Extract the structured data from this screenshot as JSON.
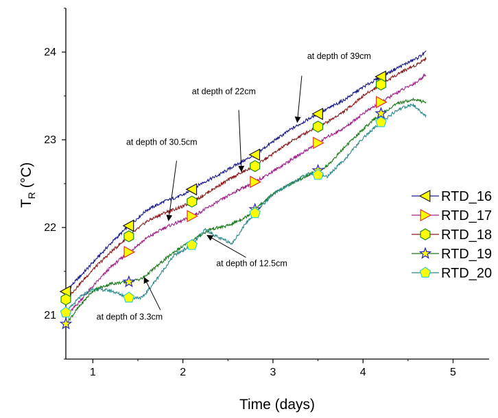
{
  "chart_data": {
    "type": "line",
    "title": "",
    "xlabel": "Time (days)",
    "ylabel_main": "T",
    "ylabel_sub": "R",
    "ylabel_unit": "(°C)",
    "xlim": [
      0.7,
      5.4
    ],
    "ylim": [
      20.5,
      24.5
    ],
    "x_ticks": [
      1,
      2,
      3,
      4,
      5
    ],
    "y_ticks": [
      21,
      22,
      23,
      24
    ],
    "grid": false,
    "legend_position": "right",
    "series": [
      {
        "name": "RTD_16",
        "color": "#1a1a8c",
        "marker": "triangle-left",
        "marker_x": [
          0.7,
          1.4,
          2.1,
          2.8,
          3.5,
          4.2
        ],
        "points": [
          [
            0.7,
            21.27
          ],
          [
            1.0,
            21.6
          ],
          [
            1.2,
            21.82
          ],
          [
            1.4,
            22.02
          ],
          [
            1.6,
            22.2
          ],
          [
            1.8,
            22.3
          ],
          [
            2.0,
            22.37
          ],
          [
            2.2,
            22.5
          ],
          [
            2.4,
            22.6
          ],
          [
            2.6,
            22.72
          ],
          [
            2.8,
            22.83
          ],
          [
            3.0,
            22.98
          ],
          [
            3.2,
            23.12
          ],
          [
            3.4,
            23.24
          ],
          [
            3.6,
            23.35
          ],
          [
            3.8,
            23.46
          ],
          [
            4.0,
            23.6
          ],
          [
            4.2,
            23.72
          ],
          [
            4.4,
            23.83
          ],
          [
            4.6,
            23.93
          ],
          [
            4.7,
            24.0
          ]
        ]
      },
      {
        "name": "RTD_17",
        "color": "#a0208a",
        "marker": "triangle-right",
        "marker_x": [
          1.4,
          2.1,
          2.8,
          3.5,
          4.2
        ],
        "points": [
          [
            0.7,
            20.98
          ],
          [
            1.0,
            21.33
          ],
          [
            1.2,
            21.55
          ],
          [
            1.4,
            21.72
          ],
          [
            1.6,
            21.88
          ],
          [
            1.8,
            22.0
          ],
          [
            2.0,
            22.08
          ],
          [
            2.2,
            22.18
          ],
          [
            2.4,
            22.3
          ],
          [
            2.6,
            22.42
          ],
          [
            2.8,
            22.52
          ],
          [
            3.0,
            22.64
          ],
          [
            3.2,
            22.77
          ],
          [
            3.4,
            22.9
          ],
          [
            3.6,
            23.03
          ],
          [
            3.8,
            23.14
          ],
          [
            4.0,
            23.3
          ],
          [
            4.2,
            23.43
          ],
          [
            4.4,
            23.55
          ],
          [
            4.6,
            23.66
          ],
          [
            4.7,
            23.75
          ]
        ]
      },
      {
        "name": "RTD_18",
        "color": "#8b1a1a",
        "marker": "hexagon",
        "marker_x": [
          0.7,
          1.4,
          2.1,
          2.8,
          3.5,
          4.2
        ],
        "points": [
          [
            0.7,
            21.18
          ],
          [
            1.0,
            21.52
          ],
          [
            1.2,
            21.72
          ],
          [
            1.4,
            21.9
          ],
          [
            1.6,
            22.07
          ],
          [
            1.8,
            22.17
          ],
          [
            2.0,
            22.24
          ],
          [
            2.2,
            22.35
          ],
          [
            2.4,
            22.48
          ],
          [
            2.6,
            22.6
          ],
          [
            2.8,
            22.7
          ],
          [
            3.0,
            22.84
          ],
          [
            3.2,
            22.98
          ],
          [
            3.4,
            23.1
          ],
          [
            3.6,
            23.2
          ],
          [
            3.8,
            23.33
          ],
          [
            4.0,
            23.5
          ],
          [
            4.2,
            23.63
          ],
          [
            4.4,
            23.76
          ],
          [
            4.6,
            23.86
          ],
          [
            4.7,
            23.93
          ]
        ]
      },
      {
        "name": "RTD_19",
        "color": "#1b7a1b",
        "marker": "star",
        "marker_x": [
          0.7,
          1.4,
          2.8,
          3.5,
          4.2
        ],
        "points": [
          [
            0.7,
            20.9
          ],
          [
            0.85,
            21.1
          ],
          [
            1.0,
            21.28
          ],
          [
            1.2,
            21.36
          ],
          [
            1.4,
            21.38
          ],
          [
            1.55,
            21.42
          ],
          [
            1.7,
            21.55
          ],
          [
            1.9,
            21.72
          ],
          [
            2.1,
            21.85
          ],
          [
            2.3,
            21.98
          ],
          [
            2.5,
            22.02
          ],
          [
            2.7,
            22.12
          ],
          [
            2.85,
            22.25
          ],
          [
            3.0,
            22.38
          ],
          [
            3.2,
            22.5
          ],
          [
            3.4,
            22.6
          ],
          [
            3.6,
            22.7
          ],
          [
            3.8,
            22.92
          ],
          [
            4.0,
            23.12
          ],
          [
            4.2,
            23.3
          ],
          [
            4.4,
            23.42
          ],
          [
            4.55,
            23.46
          ],
          [
            4.7,
            23.43
          ]
        ]
      },
      {
        "name": "RTD_20",
        "color": "#2a8a8a",
        "marker": "pentagon",
        "marker_x": [
          0.7,
          1.4,
          2.1,
          2.8,
          3.5,
          4.2
        ],
        "points": [
          [
            0.7,
            21.03
          ],
          [
            0.85,
            21.2
          ],
          [
            1.0,
            21.3
          ],
          [
            1.2,
            21.28
          ],
          [
            1.4,
            21.2
          ],
          [
            1.55,
            21.2
          ],
          [
            1.7,
            21.4
          ],
          [
            1.9,
            21.68
          ],
          [
            2.1,
            21.8
          ],
          [
            2.25,
            21.98
          ],
          [
            2.4,
            21.88
          ],
          [
            2.55,
            21.82
          ],
          [
            2.7,
            22.05
          ],
          [
            2.85,
            22.22
          ],
          [
            3.0,
            22.38
          ],
          [
            3.2,
            22.5
          ],
          [
            3.4,
            22.62
          ],
          [
            3.6,
            22.58
          ],
          [
            3.8,
            22.78
          ],
          [
            4.0,
            23.02
          ],
          [
            4.2,
            23.2
          ],
          [
            4.4,
            23.35
          ],
          [
            4.55,
            23.4
          ],
          [
            4.7,
            23.27
          ]
        ]
      }
    ],
    "annotations": [
      {
        "text": "at depth of 39cm",
        "text_x": 3.38,
        "text_y": 23.92,
        "arrow_from": [
          3.32,
          23.73
        ],
        "arrow_to": [
          3.27,
          23.2
        ]
      },
      {
        "text": "at depth of 22cm",
        "text_x": 2.1,
        "text_y": 23.52,
        "arrow_from": [
          2.62,
          23.34
        ],
        "arrow_to": [
          2.65,
          22.64
        ]
      },
      {
        "text": "at depth of 30.5cm",
        "text_x": 1.37,
        "text_y": 22.94,
        "arrow_from": [
          1.93,
          22.76
        ],
        "arrow_to": [
          1.84,
          22.08
        ]
      },
      {
        "text": "at depth of 12.5cm",
        "text_x": 2.37,
        "text_y": 21.56,
        "arrow_from": [
          2.7,
          21.66
        ],
        "arrow_to": [
          2.27,
          21.91
        ]
      },
      {
        "text": "at depth of 3.3cm",
        "text_x": 1.04,
        "text_y": 20.95,
        "arrow_from": [
          1.75,
          21.06
        ],
        "arrow_to": [
          1.57,
          21.43
        ]
      }
    ]
  }
}
